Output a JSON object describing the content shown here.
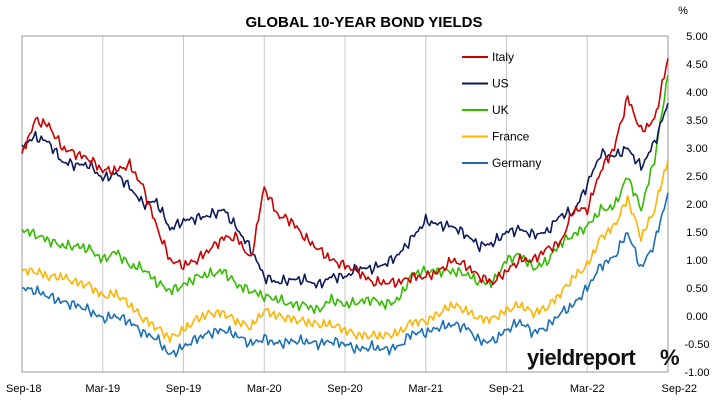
{
  "chart_data": {
    "type": "line",
    "title": "GLOBAL 10-YEAR BOND YIELDS",
    "ylabel": "%",
    "ylim": [
      -1.0,
      5.0
    ],
    "y_ticks": [
      "5.00",
      "4.50",
      "4.00",
      "3.50",
      "3.00",
      "2.50",
      "2.00",
      "1.50",
      "1.00",
      "0.50",
      "0.00",
      "-0.50",
      "-1.00"
    ],
    "x_tick_labels": [
      "Sep-18",
      "Mar-19",
      "Sep-19",
      "Mar-20",
      "Sep-20",
      "Mar-21",
      "Sep-21",
      "Mar-22",
      "Sep-22"
    ],
    "x_range": [
      "2018-09",
      "2022-09"
    ],
    "grid": {
      "horizontal": false,
      "vertical": true
    },
    "legend_position": "top-center",
    "series": [
      {
        "name": "Italy",
        "color": "#cc0000",
        "points": [
          [
            "2018-09",
            2.9
          ],
          [
            "2018-10",
            3.5
          ],
          [
            "2018-11",
            3.4
          ],
          [
            "2018-12",
            3.0
          ],
          [
            "2019-01",
            2.9
          ],
          [
            "2019-02",
            2.8
          ],
          [
            "2019-03",
            2.6
          ],
          [
            "2019-04",
            2.6
          ],
          [
            "2019-05",
            2.7
          ],
          [
            "2019-06",
            2.3
          ],
          [
            "2019-07",
            1.6
          ],
          [
            "2019-08",
            1.0
          ],
          [
            "2019-09",
            0.9
          ],
          [
            "2019-10",
            1.0
          ],
          [
            "2019-11",
            1.2
          ],
          [
            "2019-12",
            1.4
          ],
          [
            "2020-01",
            1.4
          ],
          [
            "2020-02",
            1.0
          ],
          [
            "2020-03",
            2.3
          ],
          [
            "2020-04",
            1.8
          ],
          [
            "2020-05",
            1.7
          ],
          [
            "2020-06",
            1.4
          ],
          [
            "2020-07",
            1.2
          ],
          [
            "2020-08",
            1.0
          ],
          [
            "2020-09",
            0.9
          ],
          [
            "2020-10",
            0.8
          ],
          [
            "2020-11",
            0.6
          ],
          [
            "2020-12",
            0.6
          ],
          [
            "2021-01",
            0.6
          ],
          [
            "2021-02",
            0.7
          ],
          [
            "2021-03",
            0.7
          ],
          [
            "2021-04",
            0.8
          ],
          [
            "2021-05",
            1.0
          ],
          [
            "2021-06",
            0.9
          ],
          [
            "2021-07",
            0.7
          ],
          [
            "2021-08",
            0.6
          ],
          [
            "2021-09",
            0.8
          ],
          [
            "2021-10",
            1.0
          ],
          [
            "2021-11",
            1.0
          ],
          [
            "2021-12",
            1.2
          ],
          [
            "2022-01",
            1.3
          ],
          [
            "2022-02",
            1.9
          ],
          [
            "2022-03",
            1.9
          ],
          [
            "2022-04",
            2.6
          ],
          [
            "2022-05",
            3.0
          ],
          [
            "2022-06",
            3.9
          ],
          [
            "2022-07",
            3.3
          ],
          [
            "2022-08",
            3.5
          ],
          [
            "2022-09",
            4.6
          ]
        ]
      },
      {
        "name": "US",
        "color": "#0d1a5a",
        "points": [
          [
            "2018-09",
            3.05
          ],
          [
            "2018-10",
            3.2
          ],
          [
            "2018-11",
            3.1
          ],
          [
            "2018-12",
            2.75
          ],
          [
            "2019-01",
            2.7
          ],
          [
            "2019-02",
            2.7
          ],
          [
            "2019-03",
            2.45
          ],
          [
            "2019-04",
            2.55
          ],
          [
            "2019-05",
            2.3
          ],
          [
            "2019-06",
            2.0
          ],
          [
            "2019-07",
            2.05
          ],
          [
            "2019-08",
            1.55
          ],
          [
            "2019-09",
            1.7
          ],
          [
            "2019-10",
            1.75
          ],
          [
            "2019-11",
            1.8
          ],
          [
            "2019-12",
            1.9
          ],
          [
            "2020-01",
            1.55
          ],
          [
            "2020-02",
            1.2
          ],
          [
            "2020-03",
            0.7
          ],
          [
            "2020-04",
            0.6
          ],
          [
            "2020-05",
            0.65
          ],
          [
            "2020-06",
            0.65
          ],
          [
            "2020-07",
            0.55
          ],
          [
            "2020-08",
            0.7
          ],
          [
            "2020-09",
            0.7
          ],
          [
            "2020-10",
            0.85
          ],
          [
            "2020-11",
            0.85
          ],
          [
            "2020-12",
            0.93
          ],
          [
            "2021-01",
            1.1
          ],
          [
            "2021-02",
            1.4
          ],
          [
            "2021-03",
            1.7
          ],
          [
            "2021-04",
            1.63
          ],
          [
            "2021-05",
            1.6
          ],
          [
            "2021-06",
            1.45
          ],
          [
            "2021-07",
            1.25
          ],
          [
            "2021-08",
            1.3
          ],
          [
            "2021-09",
            1.5
          ],
          [
            "2021-10",
            1.55
          ],
          [
            "2021-11",
            1.45
          ],
          [
            "2021-12",
            1.5
          ],
          [
            "2022-01",
            1.8
          ],
          [
            "2022-02",
            1.85
          ],
          [
            "2022-03",
            2.35
          ],
          [
            "2022-04",
            2.9
          ],
          [
            "2022-05",
            2.85
          ],
          [
            "2022-06",
            3.0
          ],
          [
            "2022-07",
            2.65
          ],
          [
            "2022-08",
            3.1
          ],
          [
            "2022-09",
            3.8
          ]
        ]
      },
      {
        "name": "UK",
        "color": "#33bb00",
        "points": [
          [
            "2018-09",
            1.55
          ],
          [
            "2018-10",
            1.45
          ],
          [
            "2018-11",
            1.35
          ],
          [
            "2018-12",
            1.25
          ],
          [
            "2019-01",
            1.25
          ],
          [
            "2019-02",
            1.2
          ],
          [
            "2019-03",
            1.0
          ],
          [
            "2019-04",
            1.15
          ],
          [
            "2019-05",
            0.9
          ],
          [
            "2019-06",
            0.85
          ],
          [
            "2019-07",
            0.6
          ],
          [
            "2019-08",
            0.45
          ],
          [
            "2019-09",
            0.55
          ],
          [
            "2019-10",
            0.7
          ],
          [
            "2019-11",
            0.75
          ],
          [
            "2019-12",
            0.8
          ],
          [
            "2020-01",
            0.55
          ],
          [
            "2020-02",
            0.45
          ],
          [
            "2020-03",
            0.35
          ],
          [
            "2020-04",
            0.3
          ],
          [
            "2020-05",
            0.2
          ],
          [
            "2020-06",
            0.2
          ],
          [
            "2020-07",
            0.1
          ],
          [
            "2020-08",
            0.3
          ],
          [
            "2020-09",
            0.2
          ],
          [
            "2020-10",
            0.25
          ],
          [
            "2020-11",
            0.3
          ],
          [
            "2020-12",
            0.2
          ],
          [
            "2021-01",
            0.3
          ],
          [
            "2021-02",
            0.75
          ],
          [
            "2021-03",
            0.8
          ],
          [
            "2021-04",
            0.8
          ],
          [
            "2021-05",
            0.8
          ],
          [
            "2021-06",
            0.75
          ],
          [
            "2021-07",
            0.6
          ],
          [
            "2021-08",
            0.6
          ],
          [
            "2021-09",
            1.0
          ],
          [
            "2021-10",
            1.1
          ],
          [
            "2021-11",
            0.85
          ],
          [
            "2021-12",
            0.97
          ],
          [
            "2022-01",
            1.3
          ],
          [
            "2022-02",
            1.45
          ],
          [
            "2022-03",
            1.6
          ],
          [
            "2022-04",
            1.9
          ],
          [
            "2022-05",
            1.95
          ],
          [
            "2022-06",
            2.5
          ],
          [
            "2022-07",
            1.9
          ],
          [
            "2022-08",
            2.8
          ],
          [
            "2022-09",
            4.3
          ]
        ]
      },
      {
        "name": "France",
        "color": "#ffb300",
        "points": [
          [
            "2018-09",
            0.8
          ],
          [
            "2018-10",
            0.8
          ],
          [
            "2018-11",
            0.7
          ],
          [
            "2018-12",
            0.7
          ],
          [
            "2019-01",
            0.6
          ],
          [
            "2019-02",
            0.55
          ],
          [
            "2019-03",
            0.35
          ],
          [
            "2019-04",
            0.4
          ],
          [
            "2019-05",
            0.2
          ],
          [
            "2019-06",
            -0.05
          ],
          [
            "2019-07",
            -0.2
          ],
          [
            "2019-08",
            -0.4
          ],
          [
            "2019-09",
            -0.25
          ],
          [
            "2019-10",
            -0.05
          ],
          [
            "2019-11",
            0.05
          ],
          [
            "2019-12",
            0.05
          ],
          [
            "2020-01",
            -0.1
          ],
          [
            "2020-02",
            -0.2
          ],
          [
            "2020-03",
            0.1
          ],
          [
            "2020-04",
            0.0
          ],
          [
            "2020-05",
            -0.05
          ],
          [
            "2020-06",
            -0.1
          ],
          [
            "2020-07",
            -0.15
          ],
          [
            "2020-08",
            -0.15
          ],
          [
            "2020-09",
            -0.25
          ],
          [
            "2020-10",
            -0.35
          ],
          [
            "2020-11",
            -0.35
          ],
          [
            "2020-12",
            -0.35
          ],
          [
            "2021-01",
            -0.3
          ],
          [
            "2021-02",
            -0.1
          ],
          [
            "2021-03",
            -0.1
          ],
          [
            "2021-04",
            0.05
          ],
          [
            "2021-05",
            0.2
          ],
          [
            "2021-06",
            0.1
          ],
          [
            "2021-07",
            -0.05
          ],
          [
            "2021-08",
            -0.05
          ],
          [
            "2021-09",
            0.1
          ],
          [
            "2021-10",
            0.2
          ],
          [
            "2021-11",
            0.05
          ],
          [
            "2021-12",
            0.15
          ],
          [
            "2022-01",
            0.4
          ],
          [
            "2022-02",
            0.7
          ],
          [
            "2022-03",
            0.9
          ],
          [
            "2022-04",
            1.4
          ],
          [
            "2022-05",
            1.6
          ],
          [
            "2022-06",
            2.1
          ],
          [
            "2022-07",
            1.4
          ],
          [
            "2022-08",
            1.9
          ],
          [
            "2022-09",
            2.8
          ]
        ]
      },
      {
        "name": "Germany",
        "color": "#1a6fb5",
        "points": [
          [
            "2018-09",
            0.5
          ],
          [
            "2018-10",
            0.45
          ],
          [
            "2018-11",
            0.35
          ],
          [
            "2018-12",
            0.25
          ],
          [
            "2019-01",
            0.2
          ],
          [
            "2019-02",
            0.1
          ],
          [
            "2019-03",
            -0.05
          ],
          [
            "2019-04",
            0.0
          ],
          [
            "2019-05",
            -0.1
          ],
          [
            "2019-06",
            -0.3
          ],
          [
            "2019-07",
            -0.4
          ],
          [
            "2019-08",
            -0.7
          ],
          [
            "2019-09",
            -0.55
          ],
          [
            "2019-10",
            -0.4
          ],
          [
            "2019-11",
            -0.3
          ],
          [
            "2019-12",
            -0.25
          ],
          [
            "2020-01",
            -0.35
          ],
          [
            "2020-02",
            -0.5
          ],
          [
            "2020-03",
            -0.4
          ],
          [
            "2020-04",
            -0.5
          ],
          [
            "2020-05",
            -0.45
          ],
          [
            "2020-06",
            -0.45
          ],
          [
            "2020-07",
            -0.5
          ],
          [
            "2020-08",
            -0.45
          ],
          [
            "2020-09",
            -0.5
          ],
          [
            "2020-10",
            -0.6
          ],
          [
            "2020-11",
            -0.55
          ],
          [
            "2020-12",
            -0.6
          ],
          [
            "2021-01",
            -0.55
          ],
          [
            "2021-02",
            -0.3
          ],
          [
            "2021-03",
            -0.3
          ],
          [
            "2021-04",
            -0.2
          ],
          [
            "2021-05",
            -0.15
          ],
          [
            "2021-06",
            -0.2
          ],
          [
            "2021-07",
            -0.45
          ],
          [
            "2021-08",
            -0.45
          ],
          [
            "2021-09",
            -0.25
          ],
          [
            "2021-10",
            -0.1
          ],
          [
            "2021-11",
            -0.3
          ],
          [
            "2021-12",
            -0.2
          ],
          [
            "2022-01",
            0.05
          ],
          [
            "2022-02",
            0.2
          ],
          [
            "2022-03",
            0.5
          ],
          [
            "2022-04",
            0.9
          ],
          [
            "2022-05",
            1.05
          ],
          [
            "2022-06",
            1.5
          ],
          [
            "2022-07",
            0.85
          ],
          [
            "2022-08",
            1.3
          ],
          [
            "2022-09",
            2.2
          ]
        ]
      }
    ]
  },
  "branding": {
    "logo_text": "yieldreport",
    "logo_symbol": "%",
    "logo_text_color": "#111111",
    "logo_symbol_color": "#d00000"
  }
}
